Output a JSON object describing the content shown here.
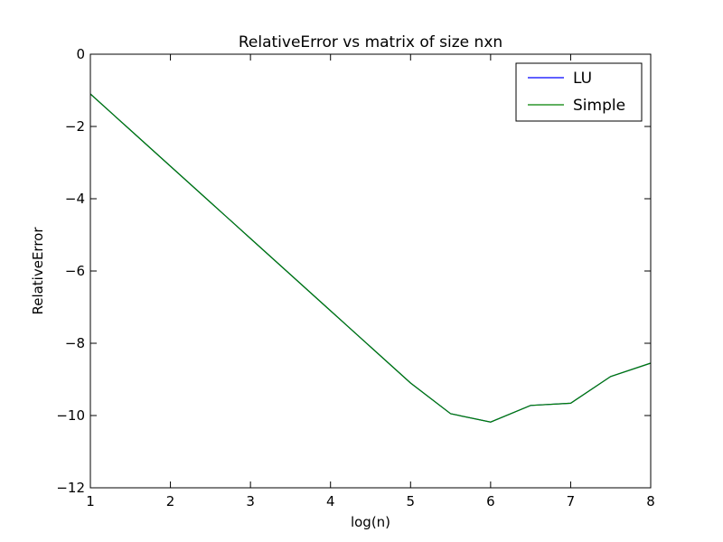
{
  "chart_data": {
    "type": "line",
    "title": "RelativeError vs matrix of size nxn",
    "xlabel": "log(n)",
    "ylabel": "RelativeError",
    "xlim": [
      1,
      8
    ],
    "ylim": [
      -12,
      0
    ],
    "x_ticks": [
      1,
      2,
      3,
      4,
      5,
      6,
      7,
      8
    ],
    "y_ticks": [
      0,
      -2,
      -4,
      -6,
      -8,
      -10,
      -12
    ],
    "x_tick_labels": [
      "1",
      "2",
      "3",
      "4",
      "5",
      "6",
      "7",
      "8"
    ],
    "y_tick_labels": [
      "0",
      "−2",
      "−4",
      "−6",
      "−8",
      "−10",
      "−12"
    ],
    "grid": false,
    "legend_placement": "top-right",
    "series": [
      {
        "name": "LU",
        "color": "#0000ff",
        "x": [
          1,
          1.5,
          2,
          2.5,
          3,
          3.5,
          4,
          4.5,
          5,
          5.5,
          6,
          6.5,
          7,
          7.5,
          8
        ],
        "y": [
          -1.1,
          -2.1,
          -3.1,
          -4.1,
          -5.1,
          -6.1,
          -7.1,
          -8.1,
          -9.1,
          -9.95,
          -10.18,
          -9.72,
          -9.66,
          -8.92,
          -8.55
        ]
      },
      {
        "name": "Simple",
        "color": "#008000",
        "x": [
          1,
          1.5,
          2,
          2.5,
          3,
          3.5,
          4,
          4.5,
          5,
          5.5,
          6,
          6.5,
          7,
          7.5,
          8
        ],
        "y": [
          -1.1,
          -2.1,
          -3.1,
          -4.1,
          -5.1,
          -6.1,
          -7.1,
          -8.1,
          -9.1,
          -9.95,
          -10.18,
          -9.72,
          -9.66,
          -8.92,
          -8.55
        ]
      }
    ]
  }
}
